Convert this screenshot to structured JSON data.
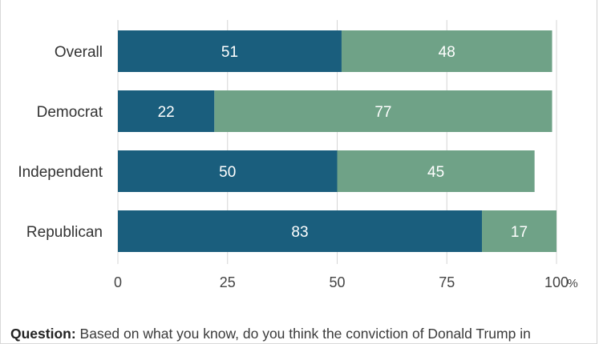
{
  "chart_data": {
    "type": "bar",
    "orientation": "horizontal",
    "stacked": true,
    "categories": [
      "Overall",
      "Democrat",
      "Independent",
      "Republican"
    ],
    "series": [
      {
        "color": "#1a5e7d",
        "values": [
          51,
          22,
          50,
          83
        ]
      },
      {
        "color": "#6fa287",
        "values": [
          48,
          77,
          45,
          17
        ]
      }
    ],
    "xlim": [
      0,
      100
    ],
    "xticks": [
      0,
      25,
      50,
      75,
      100
    ],
    "x_unit": "%",
    "grid": true
  },
  "question": {
    "label": "Question:",
    "text": " Based on what you know, do you think the conviction of Donald Trump in"
  }
}
